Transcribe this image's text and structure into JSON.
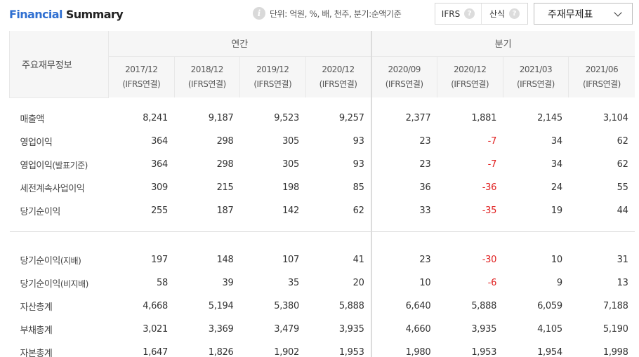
{
  "header": {
    "title_part1": "Financial",
    "title_part2": "Summary",
    "info_icon": "i",
    "unit_text": "단위: 억원, %, 배, 천주, 분기:순액기준",
    "toggle": [
      {
        "label": "IFRS",
        "help_icon": "?"
      },
      {
        "label": "산식",
        "help_icon": "?"
      }
    ],
    "dropdown_selected": "주재무제표"
  },
  "table": {
    "main_header": "주요재무정보",
    "group_annual": "연간",
    "group_quarter": "분기",
    "periods": [
      {
        "date": "2017/12",
        "basis": "(IFRS연결)"
      },
      {
        "date": "2018/12",
        "basis": "(IFRS연결)"
      },
      {
        "date": "2019/12",
        "basis": "(IFRS연결)"
      },
      {
        "date": "2020/12",
        "basis": "(IFRS연결)"
      },
      {
        "date": "2020/09",
        "basis": "(IFRS연결)"
      },
      {
        "date": "2020/12",
        "basis": "(IFRS연결)"
      },
      {
        "date": "2021/03",
        "basis": "(IFRS연결)"
      },
      {
        "date": "2021/06",
        "basis": "(IFRS연결)"
      }
    ],
    "rows_group1": [
      {
        "label": "매출액",
        "sub": "",
        "values": [
          "8,241",
          "9,187",
          "9,523",
          "9,257",
          "2,377",
          "1,881",
          "2,145",
          "3,104"
        ]
      },
      {
        "label": "영업이익",
        "sub": "",
        "values": [
          "364",
          "298",
          "305",
          "93",
          "23",
          "-7",
          "34",
          "62"
        ]
      },
      {
        "label": "영업이익",
        "sub": "(발표기준)",
        "values": [
          "364",
          "298",
          "305",
          "93",
          "23",
          "-7",
          "34",
          "62"
        ]
      },
      {
        "label": "세전계속사업이익",
        "sub": "",
        "values": [
          "309",
          "215",
          "198",
          "85",
          "36",
          "-36",
          "24",
          "55"
        ]
      },
      {
        "label": "당기순이익",
        "sub": "",
        "values": [
          "255",
          "187",
          "142",
          "62",
          "33",
          "-35",
          "19",
          "44"
        ]
      }
    ],
    "rows_group2": [
      {
        "label": "당기순이익",
        "sub": "(지배)",
        "values": [
          "197",
          "148",
          "107",
          "41",
          "23",
          "-30",
          "10",
          "31"
        ]
      },
      {
        "label": "당기순이익",
        "sub": "(비지배)",
        "values": [
          "58",
          "39",
          "35",
          "20",
          "10",
          "-6",
          "9",
          "13"
        ]
      },
      {
        "label": "자산총계",
        "sub": "",
        "values": [
          "4,668",
          "5,194",
          "5,380",
          "5,888",
          "6,640",
          "5,888",
          "6,059",
          "7,188"
        ]
      },
      {
        "label": "부채총계",
        "sub": "",
        "values": [
          "3,021",
          "3,369",
          "3,479",
          "3,935",
          "4,660",
          "3,935",
          "4,105",
          "5,190"
        ]
      },
      {
        "label": "자본총계",
        "sub": "",
        "values": [
          "1,647",
          "1,826",
          "1,902",
          "1,953",
          "1,980",
          "1,953",
          "1,954",
          "1,998"
        ]
      }
    ]
  },
  "colors": {
    "title_accent": "#2f6fd1",
    "negative": "#e02020",
    "header_bg": "#f6f6f6"
  }
}
